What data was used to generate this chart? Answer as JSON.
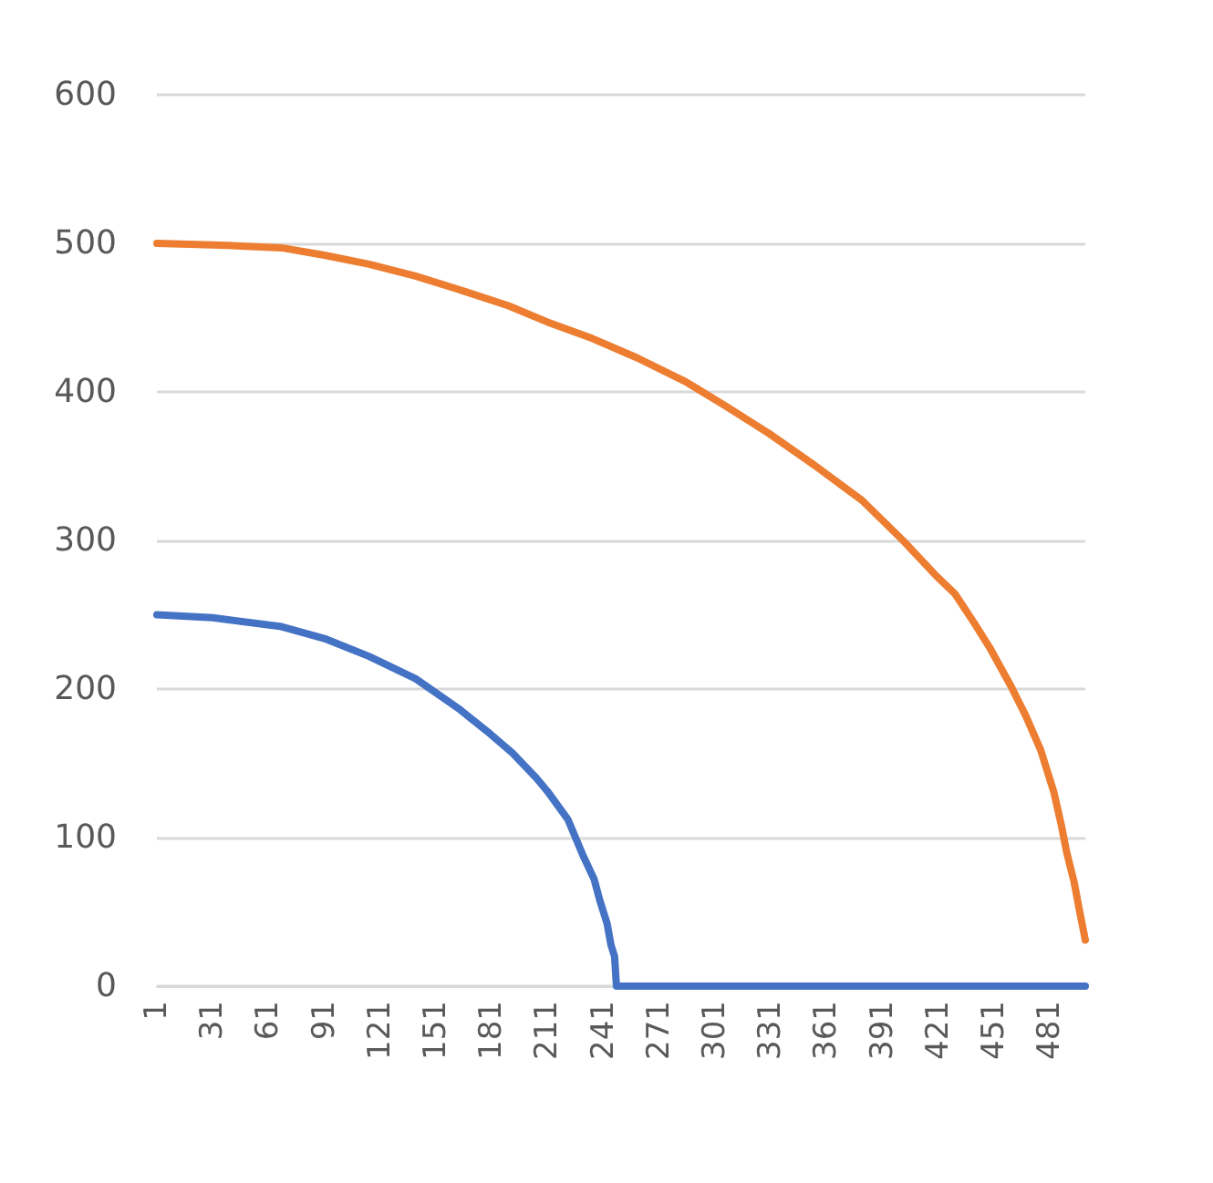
{
  "chart_data": {
    "type": "line",
    "xlim": [
      1,
      500
    ],
    "ylim": [
      0,
      600
    ],
    "yticks": [
      0,
      100,
      200,
      300,
      400,
      500,
      600
    ],
    "xticks": [
      1,
      31,
      61,
      91,
      121,
      151,
      181,
      211,
      241,
      271,
      301,
      331,
      361,
      391,
      421,
      451,
      481
    ],
    "grid": "y",
    "marker": "none",
    "line_style": "solid",
    "series": [
      {
        "color": "#4472c4",
        "x": [
          1,
          31,
          68,
          91,
          115,
          140,
          163,
          180,
          192,
          205,
          211,
          222,
          230,
          236,
          239,
          243,
          245,
          247,
          248,
          249,
          300,
          400,
          500
        ],
        "values": [
          250,
          248,
          242,
          234,
          222,
          207,
          187,
          170,
          157,
          140,
          131,
          112,
          88,
          72,
          58,
          42,
          28,
          20,
          0,
          0,
          0,
          0,
          0
        ]
      },
      {
        "color": "#ed7d31",
        "x": [
          1,
          31,
          68,
          91,
          115,
          140,
          163,
          190,
          211,
          235,
          259,
          285,
          306,
          330,
          354,
          380,
          402,
          420,
          430,
          440,
          449,
          460,
          468,
          476,
          483,
          487,
          490,
          494,
          497,
          500
        ],
        "values": [
          500,
          499,
          497,
          492,
          486,
          478,
          469,
          458,
          447,
          436,
          423,
          407,
          391,
          372,
          351,
          327,
          300,
          276,
          264,
          245,
          227,
          202,
          182,
          159,
          131,
          109,
          90,
          70,
          50,
          31
        ]
      }
    ]
  }
}
